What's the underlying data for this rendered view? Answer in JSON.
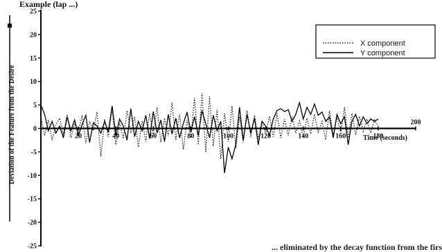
{
  "header": {
    "clipped_text": "Example (lap ...)"
  },
  "footer": {
    "clipped_text": "... eliminated by the decay function from the first... ... cause of the..."
  },
  "chart_data": {
    "type": "line",
    "title": "",
    "xlabel": "Time (seconds)",
    "ylabel": "Deviation of the Feature from the Desire",
    "xlim": [
      0,
      200
    ],
    "ylim": [
      -25,
      25
    ],
    "x_ticks": [
      20,
      40,
      60,
      80,
      100,
      120,
      140,
      160,
      180,
      200
    ],
    "y_ticks": [
      25,
      20,
      15,
      10,
      5,
      0,
      -5,
      -10,
      -15,
      -20,
      -25
    ],
    "grid": false,
    "legend_position": "top-right",
    "series": [
      {
        "name": "X component",
        "style": "dotted",
        "color": "#222222",
        "x": [
          0,
          2,
          4,
          6,
          8,
          10,
          12,
          14,
          16,
          18,
          20,
          22,
          24,
          26,
          28,
          30,
          32,
          34,
          36,
          38,
          40,
          42,
          44,
          46,
          48,
          50,
          52,
          54,
          56,
          58,
          60,
          62,
          64,
          66,
          68,
          70,
          72,
          74,
          76,
          78,
          80,
          82,
          84,
          86,
          88,
          90,
          92,
          94,
          96,
          98,
          100,
          102,
          104,
          106,
          108,
          110,
          112,
          114,
          116,
          118,
          120,
          122,
          124,
          126,
          128,
          130,
          132,
          134,
          136,
          138,
          140,
          142,
          144,
          146,
          148,
          150,
          152,
          154,
          156,
          158,
          160,
          162,
          164,
          166,
          168,
          170,
          172,
          174,
          176,
          178,
          180
        ],
        "y": [
          2.5,
          -1.5,
          1.8,
          -2.5,
          0.8,
          2.2,
          -1.2,
          3.0,
          -2.0,
          1.0,
          -0.8,
          2.8,
          -3.2,
          1.5,
          -0.5,
          3.5,
          -6.0,
          2.0,
          -1.8,
          4.2,
          -3.5,
          1.2,
          -2.2,
          3.8,
          -1.0,
          2.5,
          -4.0,
          1.6,
          -2.8,
          3.2,
          -1.5,
          4.5,
          -3.0,
          2.2,
          -1.6,
          5.5,
          -2.5,
          3.0,
          -4.5,
          1.8,
          -2.0,
          6.5,
          -3.5,
          7.5,
          -5.0,
          6.8,
          -3.8,
          4.0,
          -6.5,
          3.2,
          -2.8,
          4.8,
          -4.2,
          2.5,
          -3.0,
          3.8,
          -1.8,
          2.8,
          -2.2,
          1.5,
          -1.2,
          2.6,
          -1.8,
          3.2,
          -2.0,
          2.0,
          -1.5,
          2.5,
          -1.0,
          1.6,
          -1.8,
          2.2,
          -1.2,
          3.0,
          -0.8,
          1.5,
          -2.4,
          3.8,
          -1.5,
          2.5,
          -1.0,
          4.5,
          -2.0,
          3.2,
          -1.4,
          2.6,
          -0.6,
          2.0,
          -1.0,
          1.8,
          0.5
        ]
      },
      {
        "name": "Y component",
        "style": "solid",
        "color": "#000000",
        "x": [
          0,
          2,
          4,
          6,
          8,
          10,
          12,
          14,
          16,
          18,
          20,
          22,
          24,
          26,
          28,
          30,
          32,
          34,
          36,
          38,
          40,
          42,
          44,
          46,
          48,
          50,
          52,
          54,
          56,
          58,
          60,
          62,
          64,
          66,
          68,
          70,
          72,
          74,
          76,
          78,
          80,
          82,
          84,
          86,
          88,
          90,
          92,
          94,
          96,
          98,
          100,
          102,
          104,
          106,
          108,
          110,
          112,
          114,
          116,
          118,
          120,
          122,
          124,
          126,
          128,
          130,
          132,
          134,
          136,
          138,
          140,
          142,
          144,
          146,
          148,
          150,
          152,
          154,
          156,
          158,
          160,
          162,
          164,
          166,
          168,
          170,
          172,
          174,
          176,
          178,
          180
        ],
        "y": [
          5.0,
          3.0,
          -0.5,
          1.5,
          -1.0,
          0.5,
          -2.0,
          2.5,
          -0.5,
          1.8,
          -1.5,
          0.8,
          2.8,
          -3.0,
          1.2,
          0.5,
          -1.0,
          1.5,
          -0.8,
          4.8,
          -1.5,
          2.0,
          0.5,
          -2.5,
          4.2,
          -1.8,
          1.5,
          -0.5,
          2.8,
          -2.2,
          3.6,
          -1.0,
          1.8,
          -2.8,
          3.0,
          -1.2,
          2.2,
          -2.0,
          1.0,
          3.5,
          -0.8,
          2.5,
          -1.5,
          3.8,
          1.0,
          -2.0,
          2.8,
          -0.5,
          1.5,
          -9.5,
          -4.0,
          -6.5,
          -3.5,
          4.5,
          -2.5,
          3.0,
          -1.0,
          2.2,
          -3.5,
          1.5,
          0.5,
          -1.5,
          2.0,
          3.8,
          4.2,
          3.6,
          4.0,
          1.5,
          3.0,
          5.5,
          2.0,
          4.5,
          3.0,
          5.2,
          2.8,
          3.5,
          1.5,
          2.5,
          -2.0,
          3.0,
          1.0,
          2.5,
          -3.5,
          1.5,
          3.0,
          0.5,
          2.5,
          1.0,
          2.0,
          1.5,
          2.0
        ]
      }
    ]
  }
}
